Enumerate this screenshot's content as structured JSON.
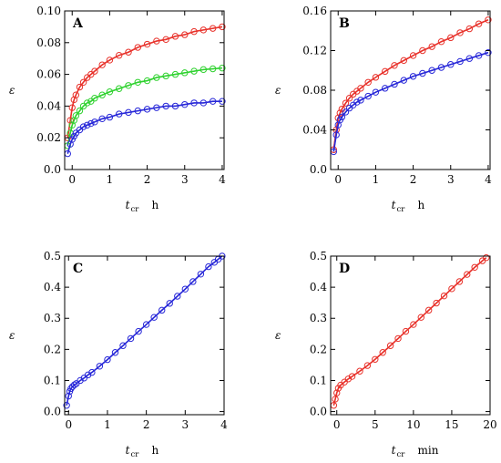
{
  "chart_data": [
    {
      "type": "scatter",
      "panel_label": "A",
      "xlabel": {
        "var": "t",
        "sub": "cr",
        "unit": "h"
      },
      "ylabel": "ε",
      "xlim": [
        -0.2,
        4.05
      ],
      "ylim": [
        0.0,
        0.1
      ],
      "xticks": [
        0,
        1,
        2,
        3,
        4
      ],
      "xtick_labels": [
        "0",
        "1",
        "2",
        "3",
        "4"
      ],
      "yticks": [
        0.0,
        0.02,
        0.04,
        0.06,
        0.08,
        0.1
      ],
      "ytick_labels": [
        "0.0",
        "0.02",
        "0.04",
        "0.06",
        "0.08",
        "0.10"
      ],
      "series": [
        {
          "color": "#e8322b",
          "x": [
            -0.12,
            -0.05,
            0,
            0.05,
            0.1,
            0.2,
            0.3,
            0.4,
            0.5,
            0.6,
            0.8,
            1,
            1.25,
            1.5,
            1.75,
            2,
            2.25,
            2.5,
            2.75,
            3,
            3.25,
            3.5,
            3.75,
            4
          ],
          "y": [
            0.02,
            0.031,
            0.039,
            0.044,
            0.047,
            0.052,
            0.055,
            0.058,
            0.06,
            0.062,
            0.066,
            0.069,
            0.072,
            0.074,
            0.077,
            0.079,
            0.081,
            0.082,
            0.084,
            0.085,
            0.087,
            0.088,
            0.089,
            0.09
          ]
        },
        {
          "color": "#2fd12f",
          "x": [
            -0.12,
            -0.05,
            0,
            0.05,
            0.1,
            0.2,
            0.3,
            0.4,
            0.5,
            0.6,
            0.8,
            1,
            1.25,
            1.5,
            1.75,
            2,
            2.25,
            2.5,
            2.75,
            3,
            3.25,
            3.5,
            3.75,
            4
          ],
          "y": [
            0.015,
            0.023,
            0.028,
            0.031,
            0.034,
            0.037,
            0.04,
            0.042,
            0.043,
            0.045,
            0.047,
            0.049,
            0.051,
            0.053,
            0.055,
            0.056,
            0.058,
            0.059,
            0.06,
            0.061,
            0.062,
            0.063,
            0.0635,
            0.064
          ]
        },
        {
          "color": "#2828d8",
          "x": [
            -0.12,
            -0.05,
            0,
            0.05,
            0.1,
            0.2,
            0.3,
            0.4,
            0.5,
            0.6,
            0.8,
            1,
            1.25,
            1.5,
            1.75,
            2,
            2.25,
            2.5,
            2.75,
            3,
            3.25,
            3.5,
            3.75,
            4
          ],
          "y": [
            0.01,
            0.016,
            0.019,
            0.021,
            0.023,
            0.025,
            0.027,
            0.028,
            0.029,
            0.03,
            0.032,
            0.033,
            0.035,
            0.036,
            0.037,
            0.038,
            0.039,
            0.04,
            0.04,
            0.041,
            0.042,
            0.042,
            0.043,
            0.043
          ]
        }
      ]
    },
    {
      "type": "scatter",
      "panel_label": "B",
      "xlabel": {
        "var": "t",
        "sub": "cr",
        "unit": "h"
      },
      "ylabel": "ε",
      "xlim": [
        -0.2,
        4.05
      ],
      "ylim": [
        0.0,
        0.16
      ],
      "xticks": [
        0,
        1,
        2,
        3,
        4
      ],
      "xtick_labels": [
        "0",
        "1",
        "2",
        "3",
        "4"
      ],
      "yticks": [
        0.0,
        0.04,
        0.08,
        0.12,
        0.16
      ],
      "ytick_labels": [
        "0.0",
        "0.04",
        "0.08",
        "0.12",
        "0.16"
      ],
      "series": [
        {
          "color": "#e8322b",
          "x": [
            -0.12,
            -0.05,
            0,
            0.05,
            0.1,
            0.2,
            0.3,
            0.4,
            0.5,
            0.6,
            0.8,
            1,
            1.25,
            1.5,
            1.75,
            2,
            2.25,
            2.5,
            2.75,
            3,
            3.25,
            3.5,
            3.75,
            4
          ],
          "y": [
            0.02,
            0.04,
            0.052,
            0.057,
            0.061,
            0.067,
            0.072,
            0.076,
            0.079,
            0.082,
            0.088,
            0.093,
            0.099,
            0.105,
            0.11,
            0.115,
            0.12,
            0.124,
            0.129,
            0.133,
            0.138,
            0.142,
            0.147,
            0.151
          ]
        },
        {
          "color": "#2828d8",
          "x": [
            -0.12,
            -0.05,
            0,
            0.05,
            0.1,
            0.2,
            0.3,
            0.4,
            0.5,
            0.6,
            0.8,
            1,
            1.25,
            1.5,
            1.75,
            2,
            2.25,
            2.5,
            2.75,
            3,
            3.25,
            3.5,
            3.75,
            4
          ],
          "y": [
            0.018,
            0.035,
            0.045,
            0.05,
            0.053,
            0.058,
            0.062,
            0.065,
            0.068,
            0.07,
            0.074,
            0.078,
            0.082,
            0.086,
            0.09,
            0.094,
            0.097,
            0.1,
            0.103,
            0.106,
            0.109,
            0.112,
            0.115,
            0.118
          ]
        }
      ]
    },
    {
      "type": "scatter",
      "panel_label": "C",
      "xlabel": {
        "var": "t",
        "sub": "cr",
        "unit": "h"
      },
      "ylabel": "ε",
      "xlim": [
        -0.1,
        4.0
      ],
      "ylim": [
        -0.01,
        0.5
      ],
      "xticks": [
        0,
        1,
        2,
        3,
        4
      ],
      "xtick_labels": [
        "0",
        "1",
        "2",
        "3",
        "4"
      ],
      "yticks": [
        0.0,
        0.1,
        0.2,
        0.3,
        0.4,
        0.5
      ],
      "ytick_labels": [
        "0.0",
        "0.1",
        "0.2",
        "0.3",
        "0.4",
        "0.5"
      ],
      "series": [
        {
          "color": "#2828d8",
          "x": [
            -0.05,
            0,
            0.03,
            0.06,
            0.1,
            0.15,
            0.2,
            0.3,
            0.4,
            0.5,
            0.6,
            0.8,
            1,
            1.2,
            1.4,
            1.6,
            1.8,
            2,
            2.2,
            2.4,
            2.6,
            2.8,
            3,
            3.2,
            3.4,
            3.6,
            3.75,
            3.85,
            3.95
          ],
          "y": [
            0.02,
            0.05,
            0.065,
            0.074,
            0.08,
            0.086,
            0.09,
            0.1,
            0.108,
            0.118,
            0.126,
            0.146,
            0.167,
            0.19,
            0.212,
            0.235,
            0.258,
            0.28,
            0.303,
            0.326,
            0.348,
            0.371,
            0.394,
            0.418,
            0.442,
            0.466,
            0.48,
            0.49,
            0.5
          ]
        }
      ]
    },
    {
      "type": "scatter",
      "panel_label": "D",
      "xlabel": {
        "var": "t",
        "sub": "cr",
        "unit": "min"
      },
      "ylabel": "ε",
      "xlim": [
        -0.8,
        20.0
      ],
      "ylim": [
        -0.01,
        0.5
      ],
      "xticks": [
        0,
        5,
        10,
        15,
        20
      ],
      "xtick_labels": [
        "0",
        "5",
        "10",
        "15",
        "20"
      ],
      "yticks": [
        0.0,
        0.1,
        0.2,
        0.3,
        0.4,
        0.5
      ],
      "ytick_labels": [
        "0.0",
        "0.1",
        "0.2",
        "0.3",
        "0.4",
        "0.5"
      ],
      "series": [
        {
          "color": "#e8322b",
          "x": [
            -0.4,
            -0.2,
            0,
            0.2,
            0.5,
            1,
            1.5,
            2,
            3,
            4,
            5,
            6,
            7,
            8,
            9,
            10,
            11,
            12,
            13,
            14,
            15,
            16,
            17,
            18,
            19,
            19.5
          ],
          "y": [
            0.02,
            0.04,
            0.06,
            0.075,
            0.085,
            0.095,
            0.105,
            0.113,
            0.13,
            0.148,
            0.168,
            0.19,
            0.212,
            0.235,
            0.258,
            0.28,
            0.303,
            0.326,
            0.349,
            0.372,
            0.395,
            0.418,
            0.441,
            0.464,
            0.485,
            0.495
          ]
        }
      ]
    }
  ]
}
